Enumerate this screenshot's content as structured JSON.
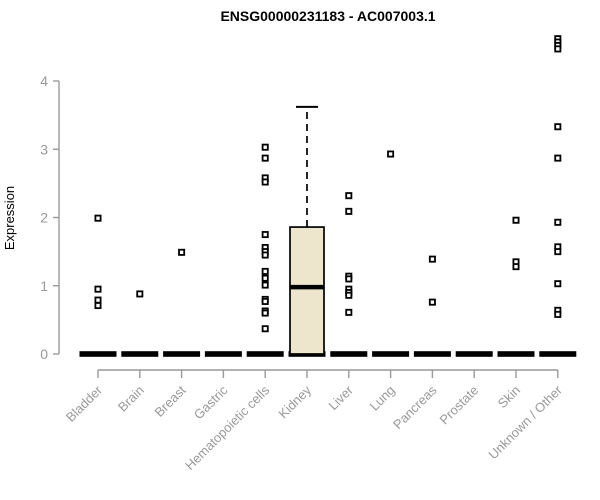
{
  "chart_data": {
    "type": "boxplot-scatter",
    "title": "ENSG00000231183 - AC007003.1",
    "ylabel": "Expression",
    "xlabel": "",
    "ylim": [
      0,
      4.8
    ],
    "yticks": [
      0,
      1,
      2,
      3,
      4
    ],
    "grid": false,
    "legend": false,
    "categories": [
      "Bladder",
      "Brain",
      "Breast",
      "Gastric",
      "Hematopoietic cells",
      "Kidney",
      "Liver",
      "Lung",
      "Pancreas",
      "Prostate",
      "Skin",
      "Unknown / Other"
    ],
    "series": [
      {
        "name": "Bladder",
        "points": [
          1.99,
          0.95,
          0.79,
          0.71
        ]
      },
      {
        "name": "Brain",
        "points": [
          0.88
        ]
      },
      {
        "name": "Breast",
        "points": [
          1.49
        ]
      },
      {
        "name": "Gastric",
        "points": []
      },
      {
        "name": "Hematopoietic cells",
        "points": [
          3.03,
          2.87,
          2.58,
          2.52,
          1.75,
          1.56,
          1.5,
          1.45,
          1.21,
          1.11,
          1.01,
          0.8,
          0.77,
          0.63,
          0.6,
          0.37
        ]
      },
      {
        "name": "Kidney",
        "points": []
      },
      {
        "name": "Liver",
        "points": [
          2.32,
          2.09,
          1.14,
          1.1,
          0.95,
          0.9,
          0.86,
          0.61
        ]
      },
      {
        "name": "Lung",
        "points": [
          2.93
        ]
      },
      {
        "name": "Pancreas",
        "points": [
          1.39,
          0.76
        ]
      },
      {
        "name": "Prostate",
        "points": []
      },
      {
        "name": "Skin",
        "points": [
          1.96,
          1.35,
          1.28
        ]
      },
      {
        "name": "Unknown / Other",
        "points": [
          4.62,
          4.57,
          4.52,
          4.47,
          3.33,
          2.87,
          1.93,
          1.57,
          1.5,
          1.03,
          0.64,
          0.58
        ]
      }
    ],
    "box": {
      "category": "Kidney",
      "q1": 0,
      "median": 0.98,
      "q3": 1.86,
      "whisker_low": 0,
      "whisker_high": 3.62
    },
    "zero_bar": {
      "value": 0,
      "applies_to": "all_categories"
    },
    "colors": {
      "title": "#000000",
      "axis": "#999999",
      "tick_label": "#999999",
      "point": "#000000",
      "zero_bar": "#000000",
      "box_fill": "#ede6cd",
      "box_stroke": "#000000",
      "median": "#000000"
    }
  }
}
